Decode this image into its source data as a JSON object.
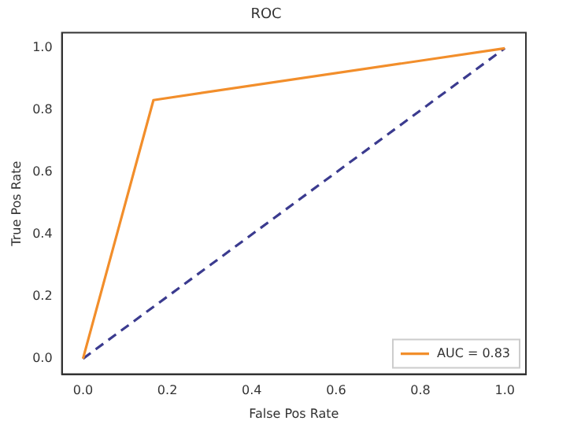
{
  "chart_data": {
    "type": "line",
    "title": "ROC",
    "xlabel": "False Pos Rate",
    "ylabel": "True Pos Rate",
    "series": [
      {
        "name": "AUC = 0.83",
        "color": "#f28e2b",
        "x": [
          0,
          0.167,
          1
        ],
        "values": [
          0,
          0.833,
          1
        ],
        "line_style": "solid"
      },
      {
        "color": "#3b3b8f",
        "x": [
          0,
          1
        ],
        "values": [
          0,
          1
        ],
        "line_style": "dashed"
      }
    ],
    "xlim": [
      -0.05,
      1.05
    ],
    "ylim": [
      -0.05,
      1.05
    ],
    "xticks": [
      {
        "value": 0,
        "label": "0.0"
      },
      {
        "value": 0.2,
        "label": "0.2"
      },
      {
        "value": 0.4,
        "label": "0.4"
      },
      {
        "value": 0.6,
        "label": "0.6"
      },
      {
        "value": 0.8,
        "label": "0.8"
      },
      {
        "value": 1,
        "label": "1.0"
      }
    ],
    "yticks": [
      {
        "value": 0,
        "label": "0.0"
      },
      {
        "value": 0.2,
        "label": "0.2"
      },
      {
        "value": 0.4,
        "label": "0.4"
      },
      {
        "value": 0.6,
        "label": "0.6"
      },
      {
        "value": 0.8,
        "label": "0.8"
      },
      {
        "value": 1,
        "label": "1.0"
      }
    ],
    "grid": false,
    "legend": "bottom right",
    "marker": "none"
  }
}
